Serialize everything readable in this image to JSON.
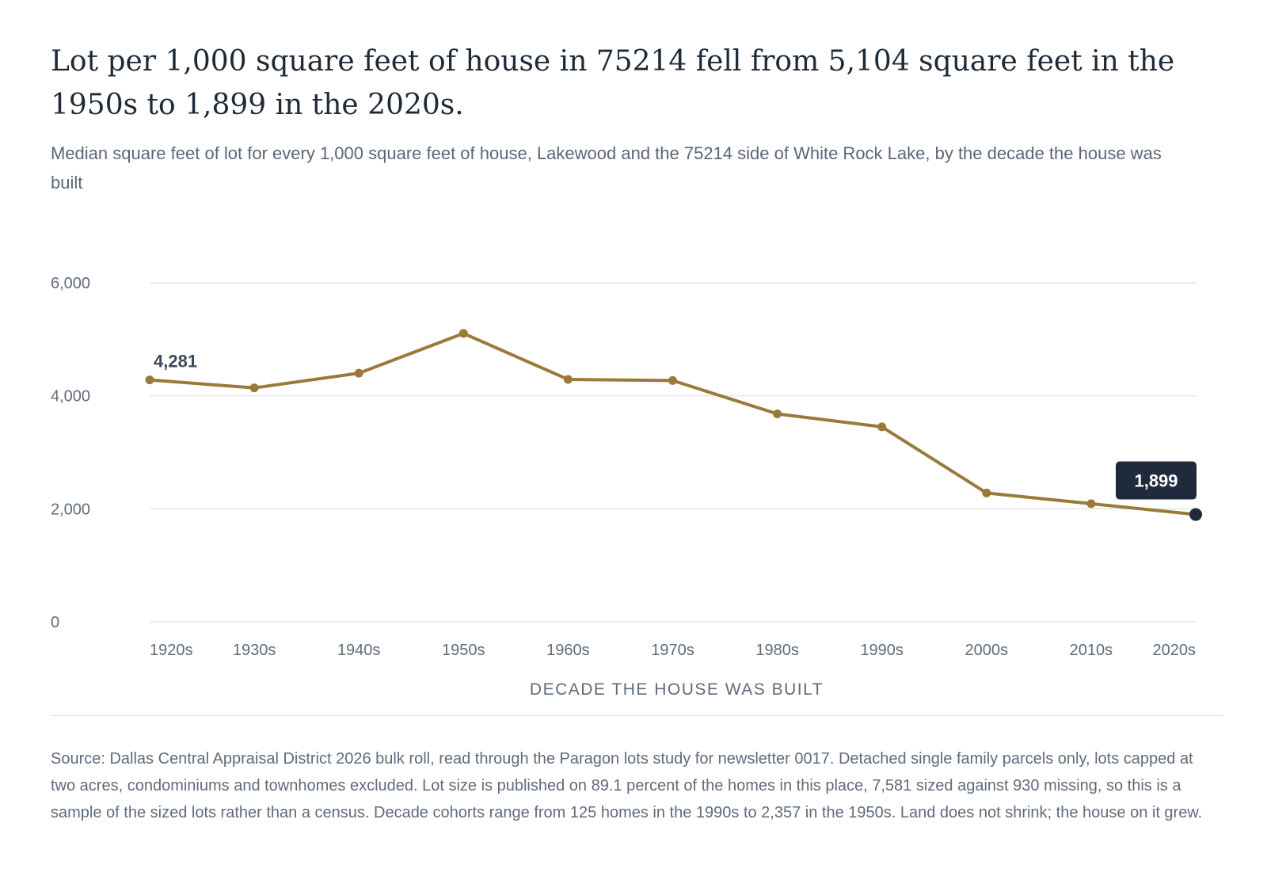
{
  "title": "Lot per 1,000 square feet of house in 75214 fell from 5,104 square feet in the 1950s to 1,899 in the 2020s.",
  "subtitle": "Median square feet of lot for every 1,000 square feet of house, Lakewood and the 75214 side of White Rock Lake, by the decade the house was built",
  "source": "Source: Dallas Central Appraisal District 2026 bulk roll, read through the Paragon lots study for newsletter 0017. Detached single family parcels only, lots capped at two acres, condominiums and townhomes excluded. Lot size is published on 89.1 percent of the homes in this place, 7,581 sized against 930 missing, so this is a sample of the sized lots rather than a census. Decade cohorts range from 125 homes in the 1990s to 2,357 in the 1950s. Land does not shrink; the house on it grew.",
  "colors": {
    "line": "#9a7a3a",
    "highlight": "#1f2a3c",
    "grid": "#e3e5e8",
    "axis_text": "#5f6b7b",
    "start_label": "#3d4a5c"
  },
  "chart_data": {
    "type": "line",
    "categories": [
      "1920s",
      "1930s",
      "1940s",
      "1950s",
      "1960s",
      "1970s",
      "1980s",
      "1990s",
      "2000s",
      "2010s",
      "2020s"
    ],
    "series": [
      {
        "values": [
          4281,
          4140,
          4400,
          5104,
          4290,
          4270,
          3680,
          3450,
          2280,
          2090,
          1899
        ]
      }
    ],
    "xlabel": "DECADE THE HOUSE WAS BUILT",
    "ylabel": "",
    "ylim": [
      0,
      6000
    ],
    "yticks": [
      0,
      2000,
      4000,
      6000
    ],
    "ytick_labels": [
      "0",
      "2,000",
      "4,000",
      "6,000"
    ],
    "grid": true,
    "legend": "none",
    "annotations": [
      {
        "label": "4,281",
        "category": "1920s",
        "style": "plain"
      },
      {
        "label": "1,899",
        "category": "2020s",
        "style": "badge"
      }
    ]
  }
}
